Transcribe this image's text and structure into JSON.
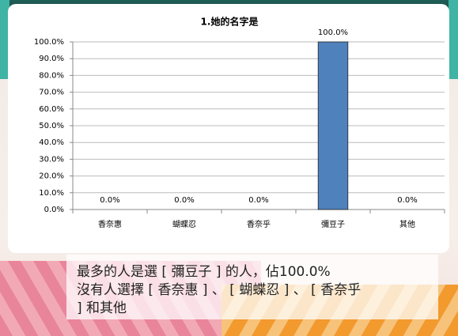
{
  "chart_data": {
    "type": "bar",
    "title": "1.她的名字是",
    "categories": [
      "香奈惠",
      "蝴蝶忍",
      "香奈乎",
      "彌豆子",
      "其他"
    ],
    "values": [
      0,
      0,
      0,
      100,
      0
    ],
    "value_labels": [
      "0.0%",
      "0.0%",
      "0.0%",
      "100.0%",
      "0.0%"
    ],
    "color": "#4f81bd",
    "ylim": [
      0,
      100
    ],
    "yticks": [
      {
        "value": 0,
        "label": "0.0%"
      },
      {
        "value": 10,
        "label": "10.0%"
      },
      {
        "value": 20,
        "label": "20.0%"
      },
      {
        "value": 30,
        "label": "30.0%"
      },
      {
        "value": 40,
        "label": "40.0%"
      },
      {
        "value": 50,
        "label": "50.0%"
      },
      {
        "value": 60,
        "label": "60.0%"
      },
      {
        "value": 70,
        "label": "70.0%"
      },
      {
        "value": 80,
        "label": "80.0%"
      },
      {
        "value": 90,
        "label": "90.0%"
      },
      {
        "value": 100,
        "label": "100.0%"
      }
    ],
    "grid": true
  },
  "caption": {
    "lines": [
      "最多的人是選 [ 彌豆子 ] 的人，佔100.0%",
      "沒有人選擇 [ 香奈惠 ] 、 [ 蝴蝶忍 ] 、 [ 香奈乎",
      " ] 和其他"
    ]
  }
}
